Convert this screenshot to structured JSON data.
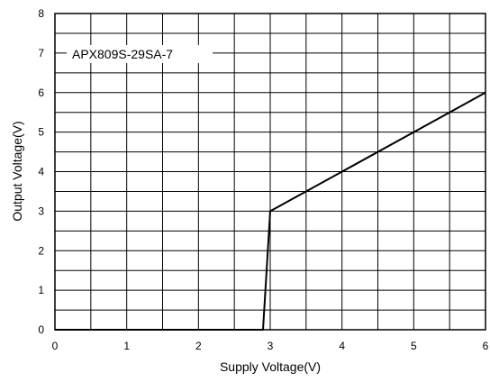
{
  "chart_data": {
    "type": "line",
    "title": "",
    "xlabel": "Supply Voltage(V)",
    "ylabel": "Output Voltage(V)",
    "xlim": [
      0,
      6
    ],
    "ylim": [
      0,
      8
    ],
    "x_ticks": [
      "0",
      "1",
      "2",
      "3",
      "4",
      "5",
      "6"
    ],
    "y_ticks": [
      "0",
      "1",
      "2",
      "3",
      "4",
      "5",
      "6",
      "7",
      "8"
    ],
    "grid": true,
    "series": [
      {
        "name": "APX809S-29SA-7",
        "color": "#000000",
        "x": [
          0,
          2.9,
          3.0,
          6.0
        ],
        "y": [
          0,
          0,
          3.0,
          6.0
        ]
      }
    ],
    "legend": {
      "placement": "top-left",
      "label": "APX809S-29SA-7"
    }
  }
}
